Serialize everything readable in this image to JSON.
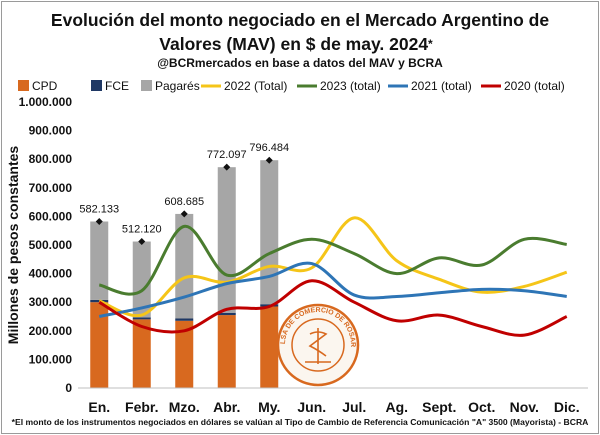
{
  "title_line1": "Evolución del monto negociado en el Mercado Argentino de",
  "title_line2": "Valores (MAV) en $ de may. 2024",
  "title_asterisk": "*",
  "subtitle": "@BCRmercados en base a datos del MAV y BCRA",
  "footnote": "*El monto de los instrumentos negociados en dólares se valúan al Tipo de Cambio de Referencia Comunicación \"A\" 3500 (Mayorista) - BCRA",
  "seal_text": "BOLSA DE COMERCIO DE ROSARIO",
  "colors": {
    "cpd": "#d8691f",
    "fce": "#1f3864",
    "pagares": "#a6a6a6",
    "y2022": "#f5c518",
    "y2023": "#4a7c2f",
    "y2021": "#2e75b6",
    "y2020": "#c00000"
  },
  "chart_data": {
    "type": "bar",
    "title": "Evolución del monto negociado en el Mercado Argentino de Valores (MAV) en $ de may. 2024*",
    "subtitle": "@BCRmercados en base a datos del MAV y BCRA",
    "ylabel": "Millones de pesos constantes",
    "xlabel": "",
    "ylim": [
      0,
      1000000
    ],
    "ytick_step": 100000,
    "ytick_labels": [
      "0",
      "100.000",
      "200.000",
      "300.000",
      "400.000",
      "500.000",
      "600.000",
      "700.000",
      "800.000",
      "900.000",
      "1.000.000"
    ],
    "categories": [
      "En.",
      "Febr.",
      "Mzo.",
      "Abr.",
      "My.",
      "Jun.",
      "Jul.",
      "Ag.",
      "Sept.",
      "Oct.",
      "Nov.",
      "Dic."
    ],
    "stacked_bars": [
      {
        "name": "CPD",
        "values": [
          300000,
          240000,
          235000,
          255000,
          285000
        ]
      },
      {
        "name": "FCE",
        "values": [
          8000,
          7000,
          8000,
          8000,
          8000
        ]
      },
      {
        "name": "Pagarés",
        "values": [
          274133,
          265120,
          365685,
          509097,
          503484
        ]
      }
    ],
    "totals": [
      582133,
      512120,
      608685,
      772097,
      796484
    ],
    "total_labels": [
      "582.133",
      "512.120",
      "608.685",
      "772.097",
      "796.484"
    ],
    "lines": [
      {
        "name": "2022 (Total)",
        "values": [
          305000,
          255000,
          385000,
          370000,
          425000,
          420000,
          595000,
          445000,
          380000,
          335000,
          355000,
          405000
        ]
      },
      {
        "name": "2023 (total)",
        "values": [
          360000,
          340000,
          565000,
          395000,
          470000,
          520000,
          470000,
          400000,
          455000,
          430000,
          520000,
          502000
        ]
      },
      {
        "name": "2021 (total)",
        "values": [
          250000,
          280000,
          318000,
          365000,
          390000,
          435000,
          325000,
          320000,
          333000,
          345000,
          340000,
          320000
        ]
      },
      {
        "name": "2020 (total)",
        "values": [
          300000,
          215000,
          200000,
          275000,
          285000,
          375000,
          300000,
          235000,
          255000,
          215000,
          185000,
          250000
        ]
      }
    ],
    "legend": [
      "CPD",
      "FCE",
      "Pagarés",
      "2022 (Total)",
      "2023 (total)",
      "2021 (total)",
      "2020 (total)"
    ],
    "legend_position": "top",
    "grid": false
  }
}
